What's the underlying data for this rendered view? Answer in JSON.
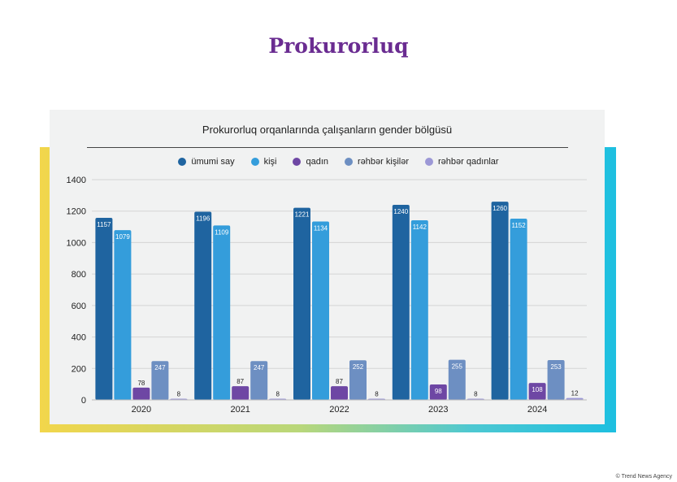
{
  "page_title": "Prokurorluq",
  "watermark": "© Trend News Agency",
  "chart_data": {
    "type": "bar",
    "title": "Prokurorluq orqanlarında çalışanların gender bölgüsü",
    "xlabel": "",
    "ylabel": "",
    "categories": [
      "2020",
      "2021",
      "2022",
      "2023",
      "2024"
    ],
    "series": [
      {
        "name": "ümumi say",
        "color": "#1f64a0",
        "values": [
          1157,
          1196,
          1221,
          1240,
          1260
        ]
      },
      {
        "name": "kişi",
        "color": "#349ddb",
        "values": [
          1079,
          1109,
          1134,
          1142,
          1152
        ]
      },
      {
        "name": "qadın",
        "color": "#6e47a4",
        "values": [
          78,
          87,
          87,
          98,
          108
        ]
      },
      {
        "name": "rəhbər kişilər",
        "color": "#6d8fc2",
        "values": [
          247,
          247,
          252,
          255,
          253
        ]
      },
      {
        "name": "rəhbər qadınlar",
        "color": "#9c98d6",
        "values": [
          8,
          8,
          8,
          8,
          12
        ]
      }
    ],
    "ylim": [
      0,
      1400
    ],
    "yticks": [
      0,
      200,
      400,
      600,
      800,
      1000,
      1200,
      1400
    ],
    "grid": true,
    "legend_position": "top"
  }
}
